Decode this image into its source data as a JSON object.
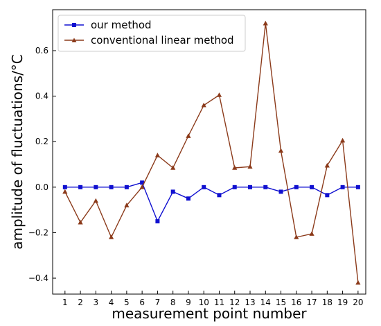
{
  "chart_data": {
    "type": "line",
    "title": "",
    "xlabel": "measurement point number",
    "ylabel": "amplitude of fluctuations/°C",
    "x": [
      1,
      2,
      3,
      4,
      5,
      6,
      7,
      8,
      9,
      10,
      11,
      12,
      13,
      14,
      15,
      16,
      17,
      18,
      19,
      20
    ],
    "xlim": [
      0.2,
      20.5
    ],
    "ylim": [
      -0.47,
      0.78
    ],
    "yticks": [
      -0.4,
      -0.2,
      0.0,
      0.2,
      0.4,
      0.6
    ],
    "ytick_labels": [
      "−0.4",
      "−0.2",
      "0.0",
      "0.2",
      "0.4",
      "0.6"
    ],
    "xtick_labels": [
      "1",
      "2",
      "3",
      "4",
      "5",
      "6",
      "7",
      "8",
      "9",
      "10",
      "11",
      "12",
      "13",
      "14",
      "15",
      "16",
      "17",
      "18",
      "19",
      "20"
    ],
    "grid": false,
    "legend_position": "top-left",
    "series": [
      {
        "name": "our method",
        "color": "#1010d0",
        "marker": "square",
        "values": [
          0.0,
          0.0,
          0.0,
          0.0,
          0.0,
          0.02,
          -0.15,
          -0.02,
          -0.05,
          0.0,
          -0.035,
          0.0,
          0.0,
          0.0,
          -0.02,
          0.0,
          0.0,
          -0.035,
          0.0,
          0.0
        ]
      },
      {
        "name": "conventional linear method",
        "color": "#8b3a1a",
        "marker": "triangle",
        "values": [
          -0.02,
          -0.155,
          -0.06,
          -0.22,
          -0.08,
          0.0,
          0.14,
          0.085,
          0.225,
          0.36,
          0.405,
          0.085,
          0.09,
          0.72,
          0.16,
          -0.22,
          -0.205,
          0.095,
          0.205,
          -0.42
        ]
      }
    ]
  }
}
